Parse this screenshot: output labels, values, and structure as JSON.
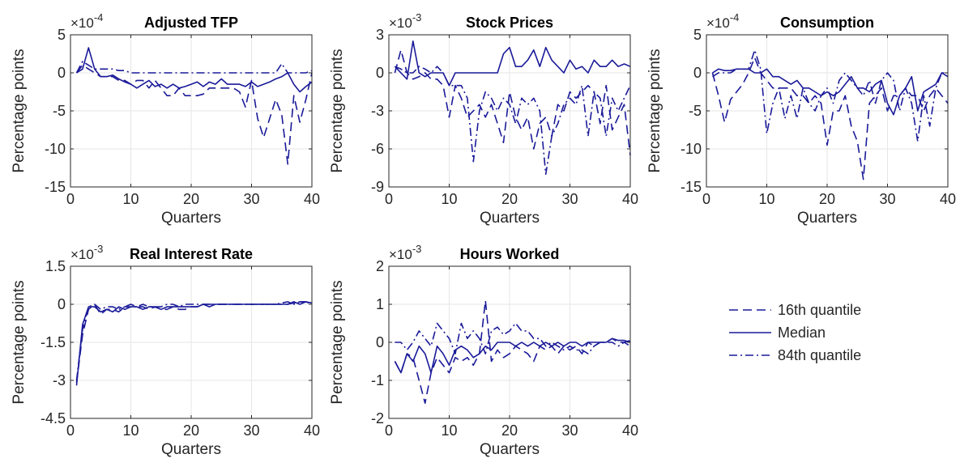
{
  "colors": {
    "line": "#1a1a99",
    "grid": "#e6e6e6",
    "axis": "#262626"
  },
  "legend": {
    "placement": "right",
    "entries": [
      {
        "label": "16th quantile",
        "style": "dashed"
      },
      {
        "label": "Median",
        "style": "solid"
      },
      {
        "label": "84th quantile",
        "style": "dashdot"
      }
    ]
  },
  "chart_data": [
    {
      "type": "line",
      "title": "Adjusted TFP",
      "exponent": "×10",
      "exponent_power": "-4",
      "xlabel": "Quarters",
      "ylabel": "Percentage points",
      "xlim": [
        0,
        40
      ],
      "ylim": [
        -15,
        5
      ],
      "xticks": [
        0,
        10,
        20,
        30,
        40
      ],
      "yticks": [
        -15,
        -10,
        -5,
        0,
        5
      ],
      "ytick_labels": [
        "-15",
        "-10",
        "-5",
        "0",
        "5"
      ],
      "grid": true,
      "x": [
        1,
        2,
        3,
        4,
        5,
        6,
        7,
        8,
        9,
        10,
        11,
        12,
        13,
        14,
        15,
        16,
        17,
        18,
        19,
        20,
        21,
        22,
        23,
        24,
        25,
        26,
        27,
        28,
        29,
        30,
        31,
        32,
        33,
        34,
        35,
        36,
        37,
        38,
        39,
        40
      ],
      "series": [
        {
          "name": "16th quantile",
          "style": "dashed",
          "values": [
            0,
            1,
            0.5,
            0,
            -0.5,
            -0.5,
            -0.5,
            -1,
            -1,
            -1.5,
            -1,
            -1,
            -2,
            -1,
            -2,
            -3,
            -3,
            -2,
            -3,
            -3,
            -3,
            -2.8,
            -2,
            -2,
            -2,
            -2,
            -2,
            -2.5,
            -4.5,
            -1,
            -6,
            -8.5,
            -6,
            -3.5,
            -5.5,
            -12,
            -3,
            -6.5,
            -3.5,
            0
          ]
        },
        {
          "name": "Median",
          "style": "solid",
          "values": [
            0,
            0.5,
            3.3,
            0.5,
            -0.5,
            -0.5,
            -0.3,
            -0.8,
            -1.2,
            -1.5,
            -2,
            -1.5,
            -1,
            -1.8,
            -1.5,
            -2,
            -1.5,
            -2,
            -1.8,
            -1.5,
            -1.2,
            -1.8,
            -1.2,
            -1.5,
            -0.8,
            -1.5,
            -1.5,
            -1.5,
            -1.8,
            -1.2,
            -1.8,
            -1.5,
            -1.2,
            -0.8,
            -0.5,
            0,
            -1.5,
            -2.5,
            -1.8,
            -1.2
          ]
        },
        {
          "name": "84th quantile",
          "style": "dashdot",
          "values": [
            0,
            1.5,
            1,
            0.5,
            0.5,
            0.5,
            0.5,
            0.3,
            0.3,
            0,
            0,
            0,
            0,
            0,
            0,
            0,
            0,
            0,
            0,
            0,
            0,
            0,
            0,
            0,
            0,
            0,
            0,
            0,
            0,
            0,
            0,
            0,
            0,
            0,
            1.2,
            0,
            0,
            0,
            0,
            0.3
          ]
        }
      ]
    },
    {
      "type": "line",
      "title": "Stock Prices",
      "exponent": "×10",
      "exponent_power": "-3",
      "xlabel": "Quarters",
      "ylabel": "Percentage points",
      "xlim": [
        0,
        40
      ],
      "ylim": [
        -9,
        3
      ],
      "xticks": [
        0,
        10,
        20,
        30,
        40
      ],
      "yticks": [
        -9,
        -6,
        -3,
        0,
        3
      ],
      "ytick_labels": [
        "-9",
        "-6",
        "-3",
        "0",
        "3"
      ],
      "grid": true,
      "x": [
        1,
        2,
        3,
        4,
        5,
        6,
        7,
        8,
        9,
        10,
        11,
        12,
        13,
        14,
        15,
        16,
        17,
        18,
        19,
        20,
        21,
        22,
        23,
        24,
        25,
        26,
        27,
        28,
        29,
        30,
        31,
        32,
        33,
        34,
        35,
        36,
        37,
        38,
        39,
        40
      ],
      "series": [
        {
          "name": "16th quantile",
          "style": "dashed",
          "values": [
            0,
            1.8,
            0,
            -0.5,
            -0.3,
            0,
            -0.5,
            -0.5,
            -1,
            -3.5,
            -1,
            -2,
            -3.5,
            -3,
            -2.5,
            -3.5,
            -2.5,
            -4,
            -5.5,
            -1.5,
            -3.5,
            -4.5,
            -3.5,
            -6,
            -4,
            -3.5,
            -5,
            -2.5,
            -3,
            -1.5,
            -2,
            -1.5,
            -1,
            -1.5,
            -4,
            -1,
            -4.5,
            -3.5,
            -2.5,
            -6.5
          ]
        },
        {
          "name": "Median",
          "style": "solid",
          "values": [
            0.5,
            0,
            -0.5,
            2.5,
            0,
            -0.3,
            0,
            0,
            0,
            -1,
            0,
            0,
            0,
            0,
            0,
            0,
            0,
            0,
            1.5,
            2,
            0.5,
            0.5,
            1,
            1.8,
            0.5,
            2,
            1,
            0.5,
            0,
            1,
            0.3,
            0.5,
            0,
            1,
            0.5,
            0.5,
            1,
            0.5,
            0.7,
            0.5
          ]
        },
        {
          "name": "84th quantile",
          "style": "dashdot",
          "values": [
            0.5,
            0.3,
            0,
            0,
            0.5,
            0.3,
            0,
            0.5,
            0,
            -1,
            -1,
            -1,
            -2,
            -7,
            -3,
            -1.5,
            -2,
            -3,
            -2,
            -2.5,
            -4,
            -2,
            -2.5,
            -2,
            -3,
            -8,
            -5,
            -4,
            -2.5,
            -2,
            -2.5,
            -1,
            -5,
            -1.5,
            -2,
            -5,
            -2,
            -3,
            -2,
            -1
          ]
        }
      ]
    },
    {
      "type": "line",
      "title": "Consumption",
      "exponent": "×10",
      "exponent_power": "-4",
      "xlabel": "Quarters",
      "ylabel": "Percentage points",
      "xlim": [
        0,
        40
      ],
      "ylim": [
        -15,
        5
      ],
      "xticks": [
        0,
        10,
        20,
        30,
        40
      ],
      "yticks": [
        -15,
        -10,
        -5,
        0,
        5
      ],
      "ytick_labels": [
        "-15",
        "-10",
        "-5",
        "0",
        "5"
      ],
      "grid": true,
      "x": [
        1,
        2,
        3,
        4,
        5,
        6,
        7,
        8,
        9,
        10,
        11,
        12,
        13,
        14,
        15,
        16,
        17,
        18,
        19,
        20,
        21,
        22,
        23,
        24,
        25,
        26,
        27,
        28,
        29,
        30,
        31,
        32,
        33,
        34,
        35,
        36,
        37,
        38,
        39,
        40
      ],
      "series": [
        {
          "name": "16th quantile",
          "style": "dashed",
          "values": [
            0,
            -3,
            -6.5,
            -3.5,
            -2.5,
            -1.5,
            0,
            2,
            0,
            -1,
            -2,
            -2,
            -2,
            -2,
            -3,
            -3,
            -4,
            -3,
            -4,
            -9.5,
            -5,
            -5,
            -3,
            -7,
            -9,
            -14,
            -4,
            -3,
            -2,
            -5,
            -3,
            -3,
            -2,
            -3,
            -3,
            -5,
            -3,
            -2,
            -3,
            -4
          ]
        },
        {
          "name": "Median",
          "style": "solid",
          "values": [
            0,
            0.5,
            0.3,
            0.3,
            0.5,
            0.5,
            0.5,
            0,
            0,
            0.5,
            -0.5,
            -0.5,
            -1,
            -1.5,
            -1,
            -2,
            -2,
            -2.5,
            -3,
            -2.5,
            -3,
            -2.5,
            -1.5,
            -0.5,
            -2,
            -2,
            -2.5,
            -1.5,
            -1,
            -4,
            -5.5,
            -3,
            -2,
            -0.5,
            -5,
            -2.5,
            -2,
            -1.5,
            0,
            -0.5
          ]
        },
        {
          "name": "84th quantile",
          "style": "dashdot",
          "values": [
            -0.5,
            0,
            0,
            0,
            0.5,
            0.5,
            0.5,
            3,
            0.5,
            -8,
            -4,
            -2,
            -6,
            -3,
            -6,
            -2,
            -4,
            -5,
            -3,
            -2,
            -4,
            -1,
            0,
            -1,
            -2,
            -3,
            -1,
            -4,
            -1,
            0,
            -1,
            -5,
            -2,
            -4,
            -9,
            -3,
            -7,
            -2,
            0,
            0
          ]
        }
      ]
    },
    {
      "type": "line",
      "title": "Real Interest Rate",
      "exponent": "×10",
      "exponent_power": "-3",
      "xlabel": "Quarters",
      "ylabel": "Percentage points",
      "xlim": [
        0,
        40
      ],
      "ylim": [
        -4.5,
        1.5
      ],
      "xticks": [
        0,
        10,
        20,
        30,
        40
      ],
      "yticks": [
        -4.5,
        -3,
        -1.5,
        0,
        1.5
      ],
      "ytick_labels": [
        "-4.5",
        "-3",
        "-1.5",
        "0",
        "1.5"
      ],
      "grid": true,
      "x": [
        1,
        2,
        3,
        4,
        5,
        6,
        7,
        8,
        9,
        10,
        11,
        12,
        13,
        14,
        15,
        16,
        17,
        18,
        19,
        20,
        21,
        22,
        23,
        24,
        25,
        26,
        27,
        28,
        29,
        30,
        31,
        32,
        33,
        34,
        35,
        36,
        37,
        38,
        39,
        40
      ],
      "series": [
        {
          "name": "16th quantile",
          "style": "dashed",
          "values": [
            -3.1,
            -1.2,
            -0.2,
            0,
            -0.4,
            -0.2,
            -0.2,
            -0.3,
            -0.1,
            0,
            -0.1,
            -0.1,
            -0.2,
            -0.1,
            -0.2,
            -0.2,
            -0.1,
            -0.2,
            -0.2,
            -0.1,
            -0.1,
            0,
            0,
            0,
            0,
            0,
            0,
            0,
            0,
            0,
            0,
            0,
            0,
            0,
            0,
            0,
            0.05,
            0.1,
            0.1,
            0
          ]
        },
        {
          "name": "Median",
          "style": "solid",
          "values": [
            -3.2,
            -0.8,
            -0.1,
            -0.1,
            -0.3,
            -0.2,
            -0.3,
            -0.1,
            -0.2,
            -0.1,
            -0.1,
            -0.2,
            -0.1,
            -0.1,
            -0.2,
            -0.1,
            -0.1,
            -0.1,
            -0.1,
            -0.1,
            -0.1,
            0,
            -0.1,
            0,
            0,
            0,
            0,
            0,
            0,
            0,
            0,
            0,
            0,
            0,
            0,
            0,
            0.1,
            0,
            0.1,
            0.05
          ]
        },
        {
          "name": "84th quantile",
          "style": "dashdot",
          "values": [
            -3,
            -1,
            -0.1,
            0,
            -0.2,
            -0.1,
            -0.1,
            -0.2,
            -0.1,
            -0.1,
            -0.1,
            0,
            -0.1,
            -0.1,
            -0.1,
            0,
            0,
            -0.1,
            0,
            0,
            0,
            0,
            0,
            0,
            0,
            0,
            0,
            0,
            0,
            0,
            0,
            0,
            0,
            0,
            0.05,
            0.1,
            0,
            0.1,
            0.1,
            0.05
          ]
        }
      ]
    },
    {
      "type": "line",
      "title": "Hours Worked",
      "exponent": "×10",
      "exponent_power": "-3",
      "xlabel": "Quarters",
      "ylabel": "Percentage points",
      "xlim": [
        0,
        40
      ],
      "ylim": [
        -2,
        2
      ],
      "xticks": [
        0,
        10,
        20,
        30,
        40
      ],
      "yticks": [
        -2,
        -1,
        0,
        1,
        2
      ],
      "ytick_labels": [
        "-2",
        "-1",
        "0",
        "1",
        "2"
      ],
      "grid": true,
      "x": [
        1,
        2,
        3,
        4,
        5,
        6,
        7,
        8,
        9,
        10,
        11,
        12,
        13,
        14,
        15,
        16,
        17,
        18,
        19,
        20,
        21,
        22,
        23,
        24,
        25,
        26,
        27,
        28,
        29,
        30,
        31,
        32,
        33,
        34,
        35,
        36,
        37,
        38,
        39,
        40
      ],
      "series": [
        {
          "name": "16th quantile",
          "style": "dashed",
          "values": [
            -0.5,
            -0.8,
            -0.3,
            -0.4,
            -1,
            -1.6,
            -0.8,
            -0.4,
            -0.6,
            -0.8,
            -0.4,
            -0.5,
            -0.4,
            -0.6,
            -0.3,
            1.1,
            -0.5,
            -0.2,
            -0.4,
            -0.3,
            -0.1,
            -0.2,
            -0.3,
            -0.5,
            -0.1,
            -0.2,
            -0.1,
            -0.3,
            -0.1,
            -0.2,
            -0.1,
            -0.3,
            0,
            -0.1,
            0,
            0,
            0.1,
            0,
            0,
            -0.1
          ]
        },
        {
          "name": "Median",
          "style": "solid",
          "values": [
            -0.5,
            -0.8,
            -0.3,
            -0.5,
            -0.1,
            -0.3,
            -0.8,
            -0.1,
            -0.3,
            -0.6,
            -0.2,
            -0.1,
            -0.2,
            -0.4,
            -0.3,
            -0.1,
            -0.2,
            0,
            0,
            0,
            -0.1,
            0,
            -0.1,
            0,
            -0.1,
            0,
            -0.1,
            0,
            -0.1,
            0,
            0,
            -0.1,
            0,
            0,
            0,
            0,
            0.1,
            0.05,
            0.05,
            0
          ]
        },
        {
          "name": "84th quantile",
          "style": "dashdot",
          "values": [
            0,
            0,
            -0.2,
            0,
            0.3,
            0.1,
            -0.1,
            0.5,
            0.3,
            0.1,
            -0.3,
            0.5,
            0.1,
            0.3,
            0.1,
            -0.3,
            0.3,
            0.4,
            0.2,
            0.3,
            0.5,
            0.3,
            0.3,
            0.1,
            0.1,
            -0.1,
            0,
            -0.1,
            -0.2,
            -0.1,
            -0.2,
            -0.2,
            -0.3,
            -0.1,
            0,
            0,
            0,
            -0.1,
            0,
            0.05
          ]
        }
      ]
    }
  ]
}
